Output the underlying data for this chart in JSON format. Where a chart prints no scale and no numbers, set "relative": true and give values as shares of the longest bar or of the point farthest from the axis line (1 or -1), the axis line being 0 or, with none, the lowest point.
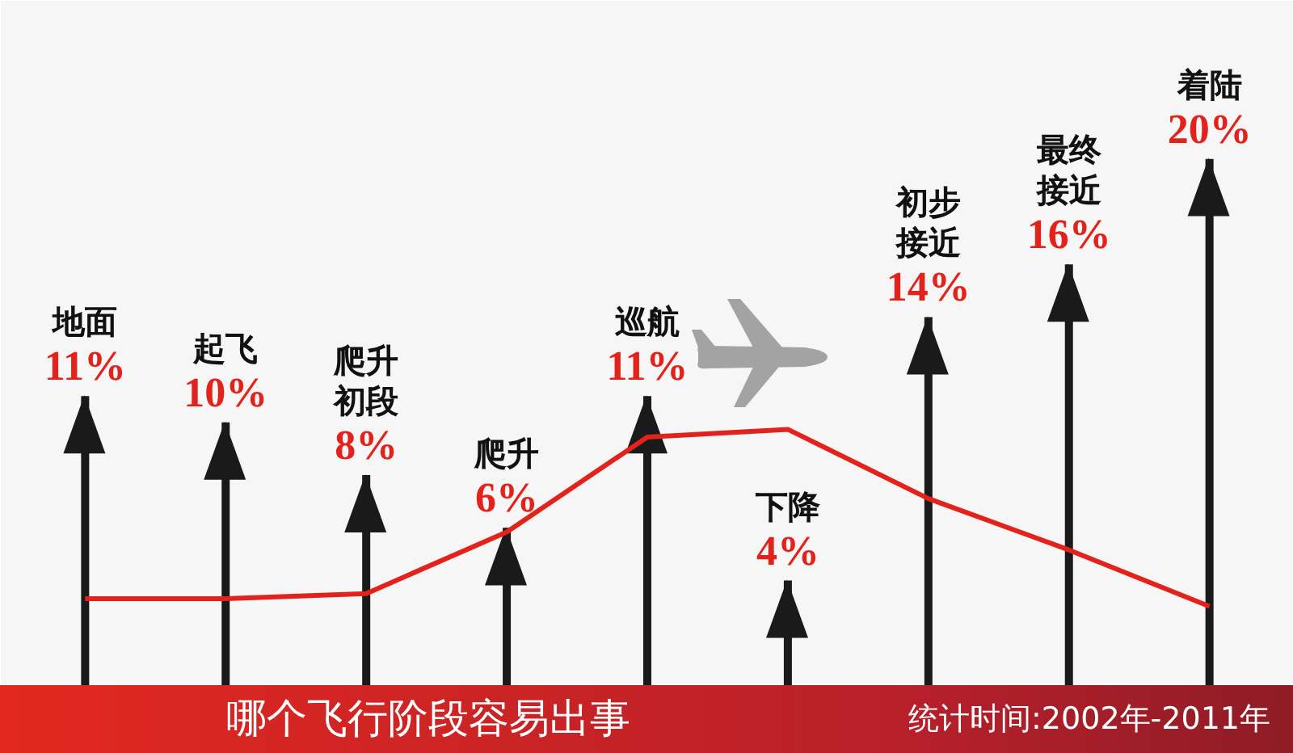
{
  "chart_data": [
    {
      "type": "bar",
      "title": "哪个飞行阶段容易出事",
      "annotations": [
        "统计时间:2002年-2011年"
      ],
      "categories": [
        "地面",
        "起飞",
        "爬升初段",
        "爬升",
        "巡航",
        "下降",
        "初步接近",
        "最终接近",
        "着陆"
      ],
      "values": [
        11,
        10,
        8,
        6,
        11,
        4,
        14,
        16,
        20
      ],
      "color": "#1a1a1a",
      "value_labels": [
        "11%",
        "10%",
        "8%",
        "6%",
        "11%",
        "4%",
        "14%",
        "16%",
        "20%"
      ],
      "tick_labels": false
    },
    {
      "type": "line",
      "relative": true,
      "categories": [
        null,
        null,
        null,
        null,
        null,
        null,
        null,
        null,
        null
      ],
      "values": [
        0.34,
        0.34,
        0.36,
        0.6,
        0.97,
        1,
        0.73,
        0.53,
        0.31
      ],
      "color": "#e3231b",
      "tick_labels": false
    }
  ]
}
